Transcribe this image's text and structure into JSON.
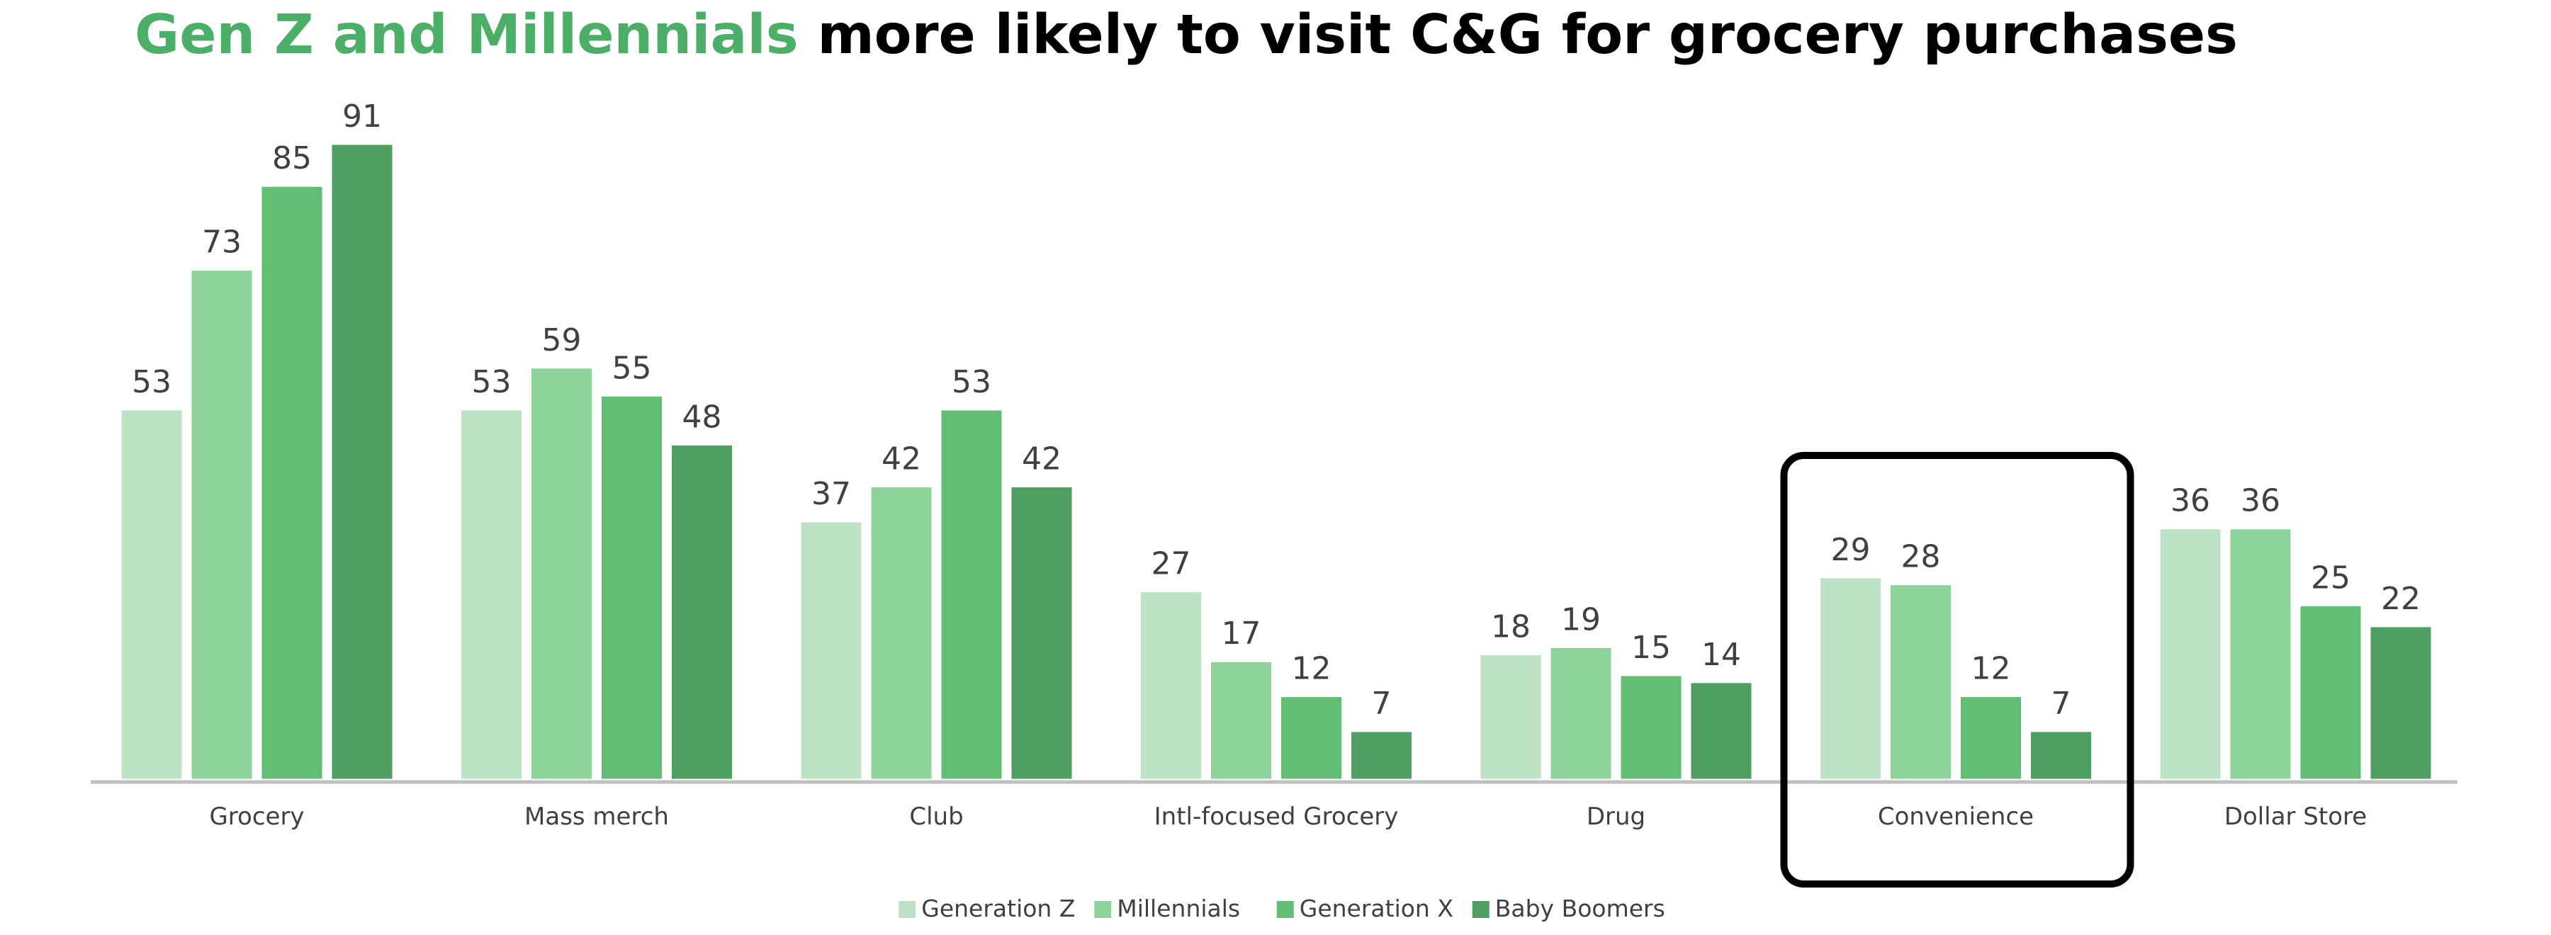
{
  "title": {
    "highlight": "Gen Z and Millennials",
    "rest": " more likely to visit C&G for grocery purchases"
  },
  "colors": {
    "title_highlight": "#4CAF68",
    "series": [
      "#BEE3C4",
      "#8ED39B",
      "#62BD75",
      "#4F9E62"
    ],
    "bar_stroke": "#ffffff",
    "axis": "#BFBFBF",
    "callout_box": "#000000"
  },
  "chart_data": {
    "type": "bar",
    "title": "Gen Z and Millennials more likely to visit C&G for grocery purchases",
    "categories": [
      "Grocery",
      "Mass merch",
      "Club",
      "Intl-focused Grocery",
      "Drug",
      "Convenience",
      "Dollar Store"
    ],
    "series": [
      {
        "name": "Generation Z",
        "values": [
          53,
          53,
          37,
          27,
          18,
          29,
          36
        ]
      },
      {
        "name": "Millennials",
        "values": [
          73,
          59,
          42,
          17,
          19,
          28,
          36
        ]
      },
      {
        "name": "Generation X",
        "values": [
          85,
          55,
          53,
          12,
          15,
          12,
          25
        ]
      },
      {
        "name": "Baby Boomers",
        "values": [
          91,
          48,
          42,
          7,
          14,
          7,
          22
        ]
      }
    ],
    "ylim": [
      0,
      91
    ],
    "grid": false,
    "data_labels": true,
    "legend_position": "bottom-center",
    "highlighted_category": "Convenience"
  }
}
